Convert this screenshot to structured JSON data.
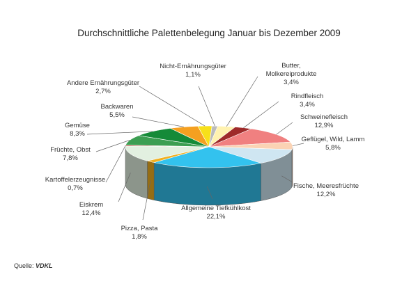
{
  "chart_data": {
    "type": "pie",
    "title": "Durchschnittliche Palettenbelegung Januar bis Dezember 2009",
    "unit": "%",
    "slices": [
      {
        "name": "Butter, Molkereiprodukte",
        "value": 3.4,
        "label": "3,4%",
        "color": "#fff2b0"
      },
      {
        "name": "Rindfleisch",
        "value": 3.4,
        "label": "3,4%",
        "color": "#9e2a2a"
      },
      {
        "name": "Schweinefleisch",
        "value": 12.9,
        "label": "12,9%",
        "color": "#f08080"
      },
      {
        "name": "Geflügel, Wild, Lamm",
        "value": 5.8,
        "label": "5,8%",
        "color": "#fbd3b4"
      },
      {
        "name": "Fische, Meeresfrüchte",
        "value": 12.2,
        "label": "12,2%",
        "color": "#cfe6f2"
      },
      {
        "name": "Allgemeine Tiefkühlkost",
        "value": 22.1,
        "label": "22,1%",
        "color": "#33c2ee"
      },
      {
        "name": "Pizza, Pasta",
        "value": 1.8,
        "label": "1,8%",
        "color": "#f0b020"
      },
      {
        "name": "Eiskrem",
        "value": 12.4,
        "label": "12,4%",
        "color": "#e2f0e0"
      },
      {
        "name": "Kartoffelerzeugnisse",
        "value": 0.7,
        "label": "0,7%",
        "color": "#cc3333"
      },
      {
        "name": "Früchte, Obst",
        "value": 7.8,
        "label": "7,8%",
        "color": "#3c9e52"
      },
      {
        "name": "Gemüse",
        "value": 8.3,
        "label": "8,3%",
        "color": "#158a38"
      },
      {
        "name": "Backwaren",
        "value": 5.5,
        "label": "5,5%",
        "color": "#f5a020"
      },
      {
        "name": "Andere Ernährungsgüter",
        "value": 2.7,
        "label": "2,7%",
        "color": "#f7e01a"
      },
      {
        "name": "Nicht-Ernährungsgüter",
        "value": 1.1,
        "label": "1,1%",
        "color": "#bbbbbb"
      }
    ]
  },
  "source": {
    "prefix": "Quelle: ",
    "name": "VDKL"
  }
}
